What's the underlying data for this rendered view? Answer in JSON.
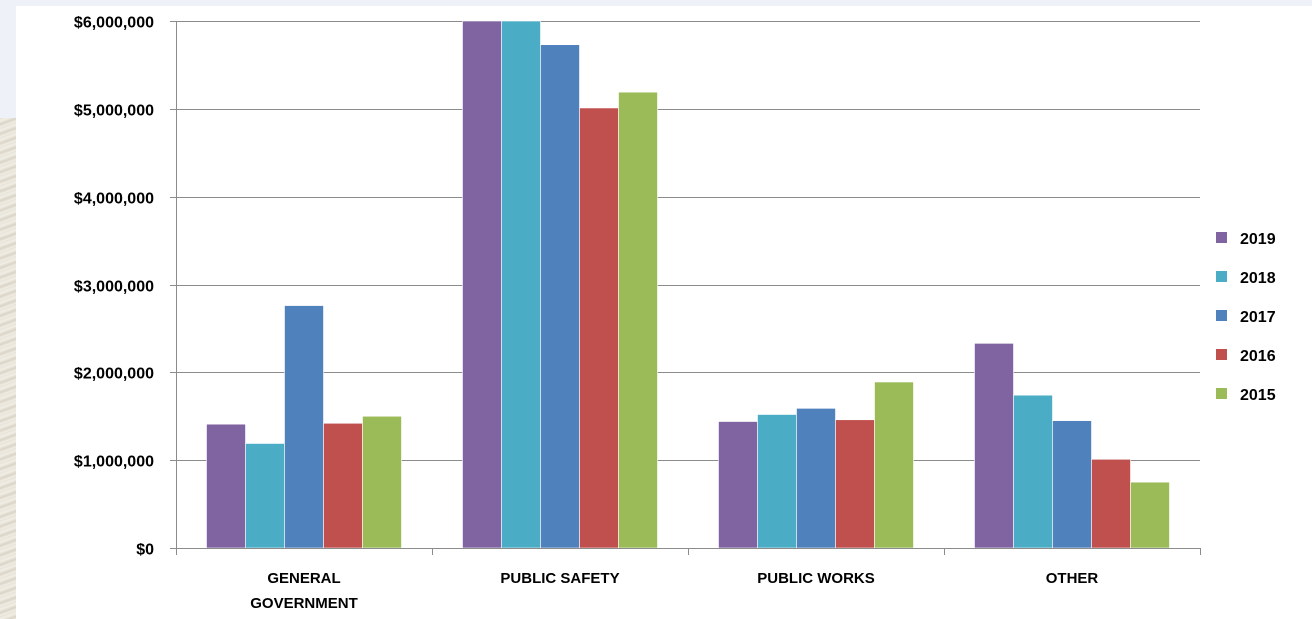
{
  "chart_data": {
    "type": "bar",
    "categories": [
      "GENERAL\nGOVERNMENT",
      "PUBLIC SAFETY",
      "PUBLIC WORKS",
      "OTHER"
    ],
    "category_lines": [
      [
        "GENERAL",
        "GOVERNMENT"
      ],
      [
        "PUBLIC SAFETY"
      ],
      [
        "PUBLIC WORKS"
      ],
      [
        "OTHER"
      ]
    ],
    "series": [
      {
        "name": "2019",
        "color": "#8064a2",
        "values": [
          1410000,
          6000000,
          1440000,
          2330000
        ]
      },
      {
        "name": "2018",
        "color": "#4bacc6",
        "values": [
          1190000,
          6000000,
          1520000,
          1740000
        ]
      },
      {
        "name": "2017",
        "color": "#4f81bd",
        "values": [
          2760000,
          5730000,
          1590000,
          1450000
        ]
      },
      {
        "name": "2016",
        "color": "#c0504d",
        "values": [
          1420000,
          5010000,
          1460000,
          1010000
        ]
      },
      {
        "name": "2015",
        "color": "#9bbb59",
        "values": [
          1500000,
          5190000,
          1890000,
          750000
        ]
      }
    ],
    "yticks": [
      0,
      1000000,
      2000000,
      3000000,
      4000000,
      5000000,
      6000000
    ],
    "ytick_labels": [
      "$0",
      "$1,000,000",
      "$2,000,000",
      "$3,000,000",
      "$4,000,000",
      "$5,000,000",
      "$6,000,000"
    ],
    "ylim": [
      0,
      6000000
    ],
    "title": "",
    "xlabel": "",
    "ylabel": "",
    "grid": true,
    "legend_position": "right"
  }
}
